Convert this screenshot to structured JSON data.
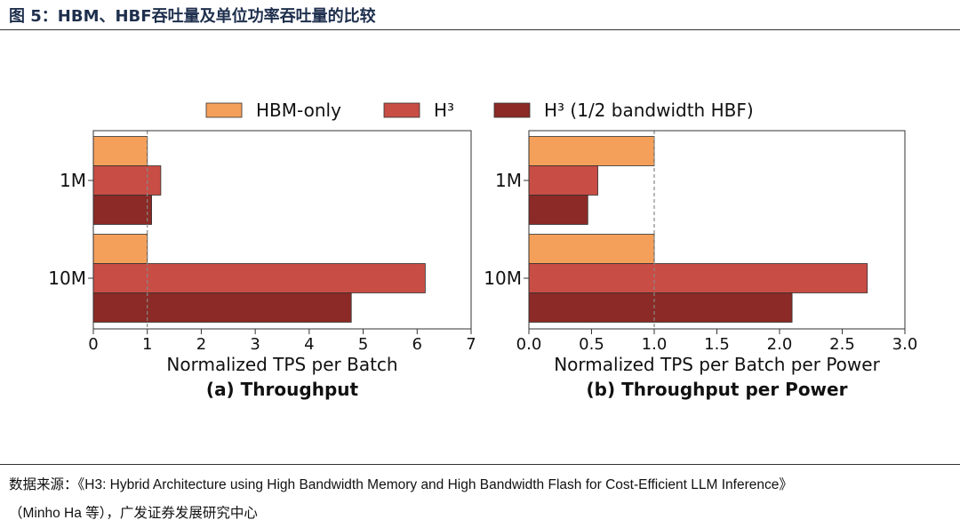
{
  "figure": {
    "title": "图 5：HBM、HBF吞吐量及单位功率吞吐量的比较",
    "source_line1": "数据来源：《H3: Hybrid Architecture using High Bandwidth Memory and High Bandwidth Flash for Cost-Efficient LLM Inference》",
    "source_line2": "（Minho Ha 等），广发证券发展研究中心"
  },
  "legend": {
    "placement": "top-center",
    "entries": [
      {
        "name": "HBM-only",
        "color": "#f4a05a"
      },
      {
        "name": "H³",
        "color": "#c84d45"
      },
      {
        "name": "H³ (1/2 bandwidth HBF)",
        "color": "#8b2a26"
      }
    ]
  },
  "chart_data": [
    {
      "type": "bar",
      "orientation": "horizontal",
      "caption": "(a) Throughput",
      "xlabel": "Normalized TPS per Batch",
      "xlim": [
        0,
        7
      ],
      "xticks": [
        "0",
        "1",
        "2",
        "3",
        "4",
        "5",
        "6",
        "7"
      ],
      "xtick_values": [
        0,
        1,
        2,
        3,
        4,
        5,
        6,
        7
      ],
      "reference_line": 1,
      "categories": [
        "1M",
        "10M"
      ],
      "series": [
        {
          "name": "HBM-only",
          "values": [
            1.0,
            1.0
          ]
        },
        {
          "name": "H³",
          "values": [
            1.25,
            6.15
          ]
        },
        {
          "name": "H³ (1/2 bandwidth HBF)",
          "values": [
            1.08,
            4.78
          ]
        }
      ]
    },
    {
      "type": "bar",
      "orientation": "horizontal",
      "caption": "(b) Throughput per Power",
      "xlabel": "Normalized TPS per Batch per Power",
      "xlim": [
        0,
        3
      ],
      "xticks": [
        "0.0",
        "0.5",
        "1.0",
        "1.5",
        "2.0",
        "2.5",
        "3.0"
      ],
      "xtick_values": [
        0,
        0.5,
        1.0,
        1.5,
        2.0,
        2.5,
        3.0
      ],
      "reference_line": 1,
      "categories": [
        "1M",
        "10M"
      ],
      "series": [
        {
          "name": "HBM-only",
          "values": [
            1.0,
            1.0
          ]
        },
        {
          "name": "H³",
          "values": [
            0.55,
            2.7
          ]
        },
        {
          "name": "H³ (1/2 bandwidth HBF)",
          "values": [
            0.47,
            2.1
          ]
        }
      ]
    }
  ]
}
